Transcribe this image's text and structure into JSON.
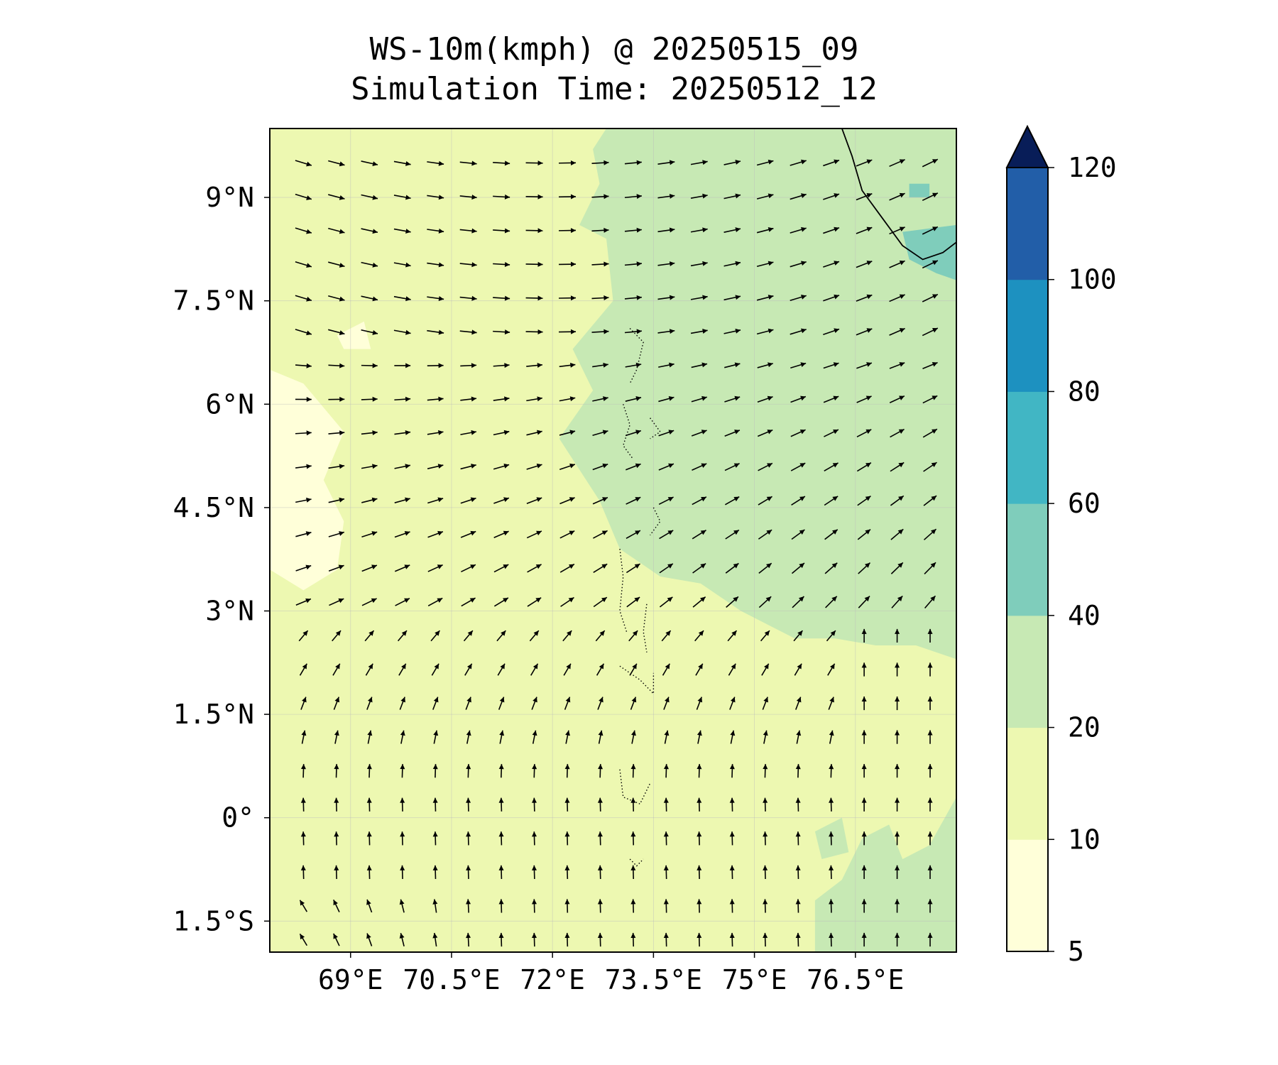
{
  "title": {
    "line1": "WS-10m(kmph) @ 20250515_09",
    "line2": "Simulation Time: 20250512_12"
  },
  "map": {
    "lon_range": [
      67.8,
      78.0
    ],
    "lat_range": [
      -1.95,
      10.0
    ],
    "x_ticks": [
      {
        "value": 69.0,
        "label": "69°E"
      },
      {
        "value": 70.5,
        "label": "70.5°E"
      },
      {
        "value": 72.0,
        "label": "72°E"
      },
      {
        "value": 73.5,
        "label": "73.5°E"
      },
      {
        "value": 75.0,
        "label": "75°E"
      },
      {
        "value": 76.5,
        "label": "76.5°E"
      }
    ],
    "y_ticks": [
      {
        "value": 9.0,
        "label": "9°N"
      },
      {
        "value": 7.5,
        "label": "7.5°N"
      },
      {
        "value": 6.0,
        "label": "6°N"
      },
      {
        "value": 4.5,
        "label": "4.5°N"
      },
      {
        "value": 3.0,
        "label": "3°N"
      },
      {
        "value": 1.5,
        "label": "1.5°N"
      },
      {
        "value": 0.0,
        "label": "0°"
      },
      {
        "value": -1.5,
        "label": "1.5°S"
      }
    ],
    "gridlines": true
  },
  "colorbar": {
    "levels": [
      "5",
      "10",
      "20",
      "40",
      "60",
      "80",
      "100",
      "120"
    ],
    "colors": [
      "#ffffd9",
      "#edf8b1",
      "#c7e9b4",
      "#7fcdbb",
      "#41b6c4",
      "#1d91c0",
      "#225ea8",
      "#0c2c84"
    ],
    "extend_color": "#081d58",
    "extend": "max"
  },
  "chart_data": {
    "type": "heatmap",
    "variable": "WS-10m(kmph)",
    "valid_time": "20250515_09",
    "simulation_time": "20250512_12",
    "background_level": "10-20",
    "regions": [
      {
        "name": "strong-wind-zone",
        "level": "20-40",
        "extent": "north-east of a line from ~72.8°E,10°N to ~77.5°E,2.3°N"
      },
      {
        "name": "weak-wind-patch-west",
        "level": "5-10",
        "extent": "~67.8-68.9°E, 3.5-6.5°N"
      },
      {
        "name": "strong-core-coast",
        "level": "40-60",
        "extent": "~77.2-78°E, 7.9-8.5°N"
      },
      {
        "name": "south-east-patch",
        "level": "20-40",
        "extent": "~75.9-78°E, -1.95 to 0.3°N"
      }
    ],
    "wind_vectors": "west-east flow in north turning northward in south; arrows every 0.5°"
  }
}
